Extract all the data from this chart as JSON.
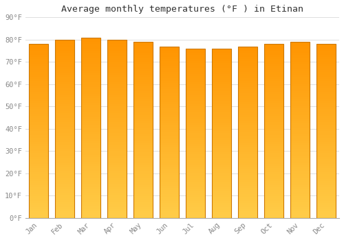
{
  "title": "Average monthly temperatures (°F ) in Etinan",
  "months": [
    "Jan",
    "Feb",
    "Mar",
    "Apr",
    "May",
    "Jun",
    "Jul",
    "Aug",
    "Sep",
    "Oct",
    "Nov",
    "Dec"
  ],
  "values": [
    78,
    80,
    81,
    80,
    79,
    77,
    76,
    76,
    77,
    78,
    79,
    78
  ],
  "ylim": [
    0,
    90
  ],
  "yticks": [
    0,
    10,
    20,
    30,
    40,
    50,
    60,
    70,
    80,
    90
  ],
  "bar_color_center": "#FFA500",
  "bar_color_left": "#CC7000",
  "bar_color_right": "#CC7000",
  "bar_gradient_bottom": "#FFC84A",
  "bar_gradient_top": "#FF9800",
  "background_color": "#FFFFFF",
  "plot_bg_color": "#FFFFFF",
  "grid_color": "#DDDDDD",
  "tick_label_color": "#888888",
  "title_color": "#333333",
  "bar_edge_color": "#CC7700",
  "ylabel_format": "°F"
}
